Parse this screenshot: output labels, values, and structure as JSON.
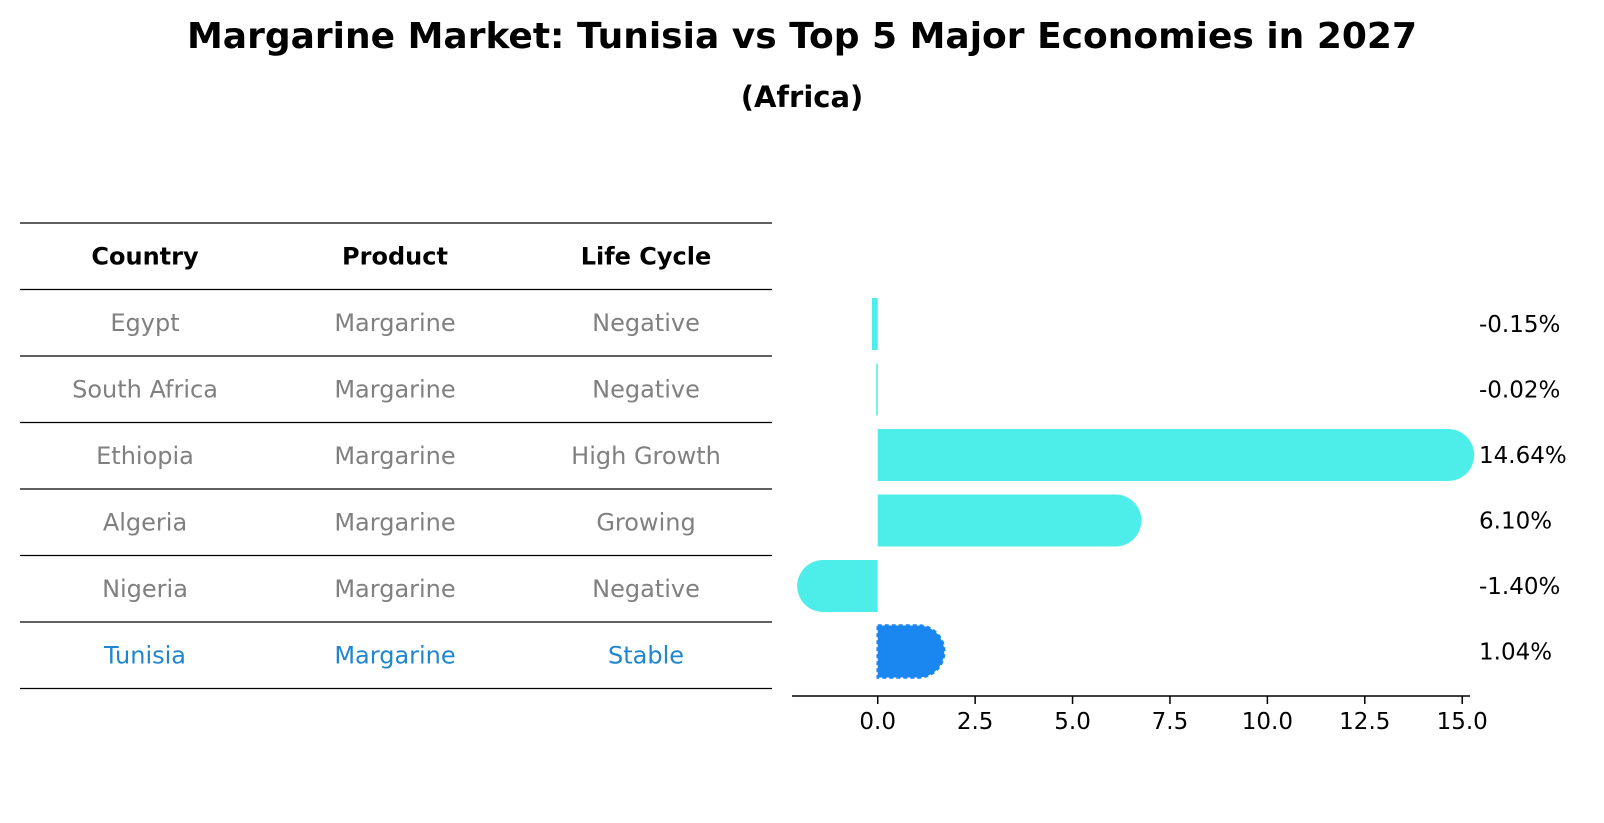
{
  "title": "Margarine Market: Tunisia vs Top 5 Major Economies in 2027",
  "subtitle": "(Africa)",
  "table": {
    "headers": [
      "Country",
      "Product",
      "Life Cycle"
    ],
    "rows": [
      {
        "country": "Egypt",
        "product": "Margarine",
        "life_cycle": "Negative",
        "highlight": false
      },
      {
        "country": "South Africa",
        "product": "Margarine",
        "life_cycle": "Negative",
        "highlight": false
      },
      {
        "country": "Ethiopia",
        "product": "Margarine",
        "life_cycle": "High Growth",
        "highlight": false
      },
      {
        "country": "Algeria",
        "product": "Margarine",
        "life_cycle": "Growing",
        "highlight": false
      },
      {
        "country": "Nigeria",
        "product": "Margarine",
        "life_cycle": "Negative",
        "highlight": false
      },
      {
        "country": "Tunisia",
        "product": "Margarine",
        "life_cycle": "Stable",
        "highlight": true
      }
    ]
  },
  "chart_data": {
    "type": "bar",
    "orientation": "horizontal",
    "categories": [
      "Egypt",
      "South Africa",
      "Ethiopia",
      "Algeria",
      "Nigeria",
      "Tunisia"
    ],
    "values": [
      -0.15,
      -0.02,
      14.64,
      6.1,
      -1.4,
      1.04
    ],
    "value_labels": [
      "-0.15%",
      "-0.02%",
      "14.64%",
      "6.10%",
      "-1.40%",
      "1.04%"
    ],
    "xlim": [
      -2.2,
      15.2
    ],
    "xticks": [
      0.0,
      2.5,
      5.0,
      7.5,
      10.0,
      12.5,
      15.0
    ],
    "xtick_labels": [
      "0.0",
      "2.5",
      "5.0",
      "7.5",
      "10.0",
      "12.5",
      "15.0"
    ],
    "grid": false,
    "colors": {
      "default": "#4deeea",
      "highlight": "#1a86f0"
    },
    "highlight_category": "Tunisia"
  }
}
